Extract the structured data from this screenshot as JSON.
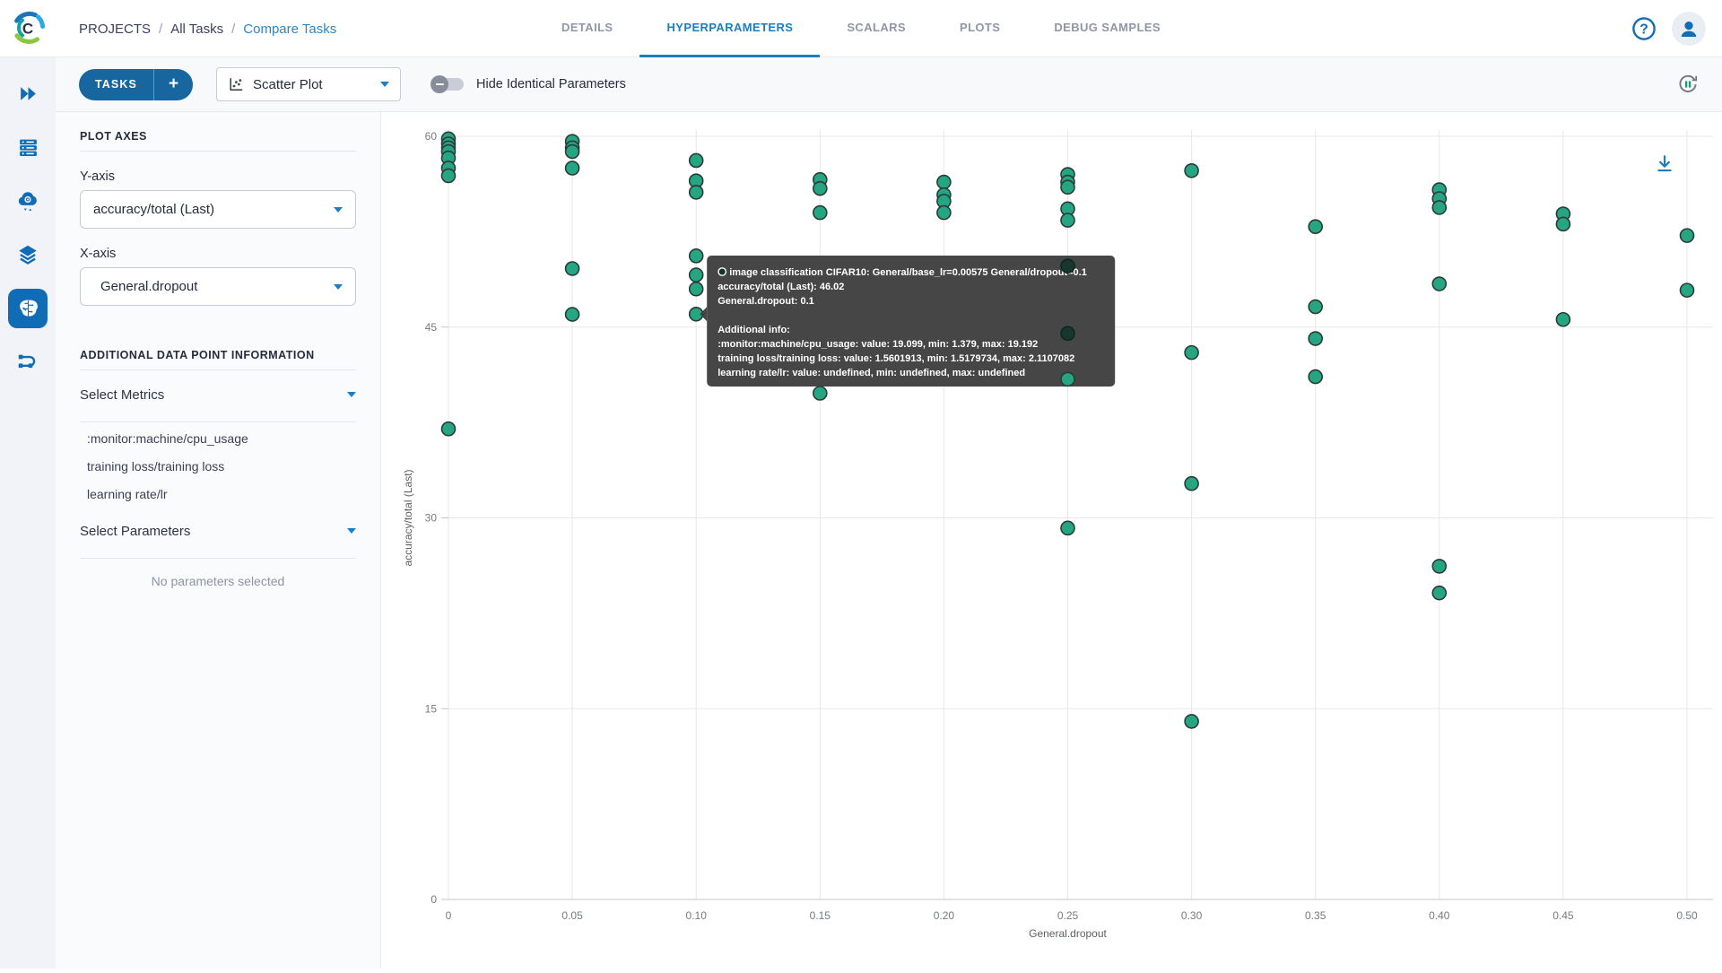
{
  "logo_letter": "C",
  "topbar": {
    "breadcrumb": {
      "items": [
        "PROJECTS",
        "All Tasks",
        "Compare Tasks"
      ],
      "separator": "/"
    },
    "tabs": [
      {
        "label": "DETAILS",
        "active": false
      },
      {
        "label": "HYPERPARAMETERS",
        "active": true
      },
      {
        "label": "SCALARS",
        "active": false
      },
      {
        "label": "PLOTS",
        "active": false
      },
      {
        "label": "DEBUG SAMPLES",
        "active": false
      }
    ]
  },
  "toolbar": {
    "tasks_label": "TASKS",
    "plus_label": "+",
    "plot_type_value": "Scatter Plot",
    "toggle_label": "Hide Identical Parameters",
    "toggle_state": "off"
  },
  "sidebar": {
    "icons": [
      "dashboard-chevrons",
      "workers-queues",
      "cloud-autoscaler",
      "datasets-layers",
      "experiments-brain",
      "pipelines"
    ]
  },
  "panel": {
    "plot_axes_title": "PLOT AXES",
    "y_axis_label": "Y-axis",
    "y_axis_value": "accuracy/total (Last)",
    "x_axis_label": "X-axis",
    "x_axis_value": "General.dropout",
    "additional_title": "ADDITIONAL DATA POINT INFORMATION",
    "select_metrics_label": "Select Metrics",
    "metrics": [
      ":monitor:machine/cpu_usage",
      "training loss/training loss",
      "learning rate/lr"
    ],
    "select_parameters_label": "Select Parameters",
    "no_parameters_text": "No parameters selected"
  },
  "colors": {
    "accent_blue": "#1b7ec2",
    "icon_blue": "#0f6cb5",
    "button_blue": "#17669f",
    "breadcrumb_active": "#2d87c6",
    "marker_fill": "#26a583",
    "marker_stroke": "#2b3a37",
    "marker_dark_fill": "#17362e",
    "tooltip_bg": "rgba(60,60,60,0.95)",
    "grid": "#e7e7ea",
    "axis_line": "#c3c6cb"
  },
  "chart_data": {
    "type": "scatter",
    "xlabel": "General.dropout",
    "ylabel": "accuracy/total (Last)",
    "xlim": [
      0,
      0.5
    ],
    "ylim": [
      0,
      60
    ],
    "legend": "none",
    "grid": true,
    "x_ticks": [
      {
        "v": 0,
        "label": "0"
      },
      {
        "v": 0.05,
        "label": "0.05"
      },
      {
        "v": 0.1,
        "label": "0.10"
      },
      {
        "v": 0.15,
        "label": "0.15"
      },
      {
        "v": 0.2,
        "label": "0.20"
      },
      {
        "v": 0.25,
        "label": "0.25"
      },
      {
        "v": 0.3,
        "label": "0.30"
      },
      {
        "v": 0.35,
        "label": "0.35"
      },
      {
        "v": 0.4,
        "label": "0.40"
      },
      {
        "v": 0.45,
        "label": "0.45"
      },
      {
        "v": 0.5,
        "label": "0.50"
      }
    ],
    "y_ticks": [
      {
        "v": 0,
        "label": "0"
      },
      {
        "v": 15,
        "label": "15"
      },
      {
        "v": 30,
        "label": "30"
      },
      {
        "v": 45,
        "label": "45"
      },
      {
        "v": 60,
        "label": "60"
      }
    ],
    "points": [
      [
        0,
        59.8
      ],
      [
        0,
        59.4
      ],
      [
        0,
        59.1
      ],
      [
        0,
        58.8
      ],
      [
        0,
        58.3
      ],
      [
        0,
        57.5
      ],
      [
        0,
        56.9
      ],
      [
        0,
        37.0
      ],
      [
        0.05,
        59.6
      ],
      [
        0.05,
        59.1
      ],
      [
        0.05,
        58.8
      ],
      [
        0.05,
        57.5
      ],
      [
        0.05,
        49.6
      ],
      [
        0.05,
        46.0
      ],
      [
        0.1,
        58.1
      ],
      [
        0.1,
        56.5
      ],
      [
        0.1,
        55.6
      ],
      [
        0.1,
        50.6
      ],
      [
        0.1,
        49.1
      ],
      [
        0.1,
        48.0
      ],
      [
        0.1,
        46.02
      ],
      [
        0.15,
        56.6
      ],
      [
        0.15,
        55.9
      ],
      [
        0.15,
        54.0
      ],
      [
        0.15,
        39.8
      ],
      [
        0.2,
        56.4
      ],
      [
        0.2,
        55.4
      ],
      [
        0.2,
        54.9
      ],
      [
        0.2,
        54.0
      ],
      [
        0.25,
        57.0
      ],
      [
        0.25,
        56.4
      ],
      [
        0.25,
        56.0
      ],
      [
        0.25,
        54.3
      ],
      [
        0.25,
        53.4
      ],
      [
        0.25,
        29.2
      ],
      [
        0.3,
        57.3
      ],
      [
        0.3,
        43.0
      ],
      [
        0.3,
        32.7
      ],
      [
        0.3,
        14.0
      ],
      [
        0.35,
        52.9
      ],
      [
        0.35,
        46.6
      ],
      [
        0.35,
        44.1
      ],
      [
        0.35,
        41.1
      ],
      [
        0.4,
        55.8
      ],
      [
        0.4,
        55.1
      ],
      [
        0.4,
        54.4
      ],
      [
        0.4,
        48.4
      ],
      [
        0.4,
        26.2
      ],
      [
        0.4,
        24.1
      ],
      [
        0.45,
        53.9
      ],
      [
        0.45,
        53.1
      ],
      [
        0.45,
        45.6
      ],
      [
        0.5,
        52.2
      ],
      [
        0.5,
        47.9
      ]
    ],
    "overlay_points": [
      {
        "x": 0.25,
        "y": 49.8,
        "style": "dark"
      },
      {
        "x": 0.25,
        "y": 44.5,
        "style": "dark"
      },
      {
        "x": 0.25,
        "y": 40.9,
        "style": "normal"
      }
    ],
    "tooltip": {
      "anchor": {
        "x": 0.1,
        "y": 46.02
      },
      "lines": [
        "image classification CIFAR10: General/base_lr=0.00575 General/dropout=0.1",
        "accuracy/total (Last): 46.02",
        "General.dropout: 0.1",
        "",
        "Additional info:",
        ":monitor:machine/cpu_usage: value: 19.099, min: 1.379, max: 19.192",
        "training loss/training loss: value: 1.5601913, min: 1.5179734, max: 2.1107082",
        "learning rate/lr: value: undefined, min: undefined, max: undefined"
      ]
    }
  }
}
